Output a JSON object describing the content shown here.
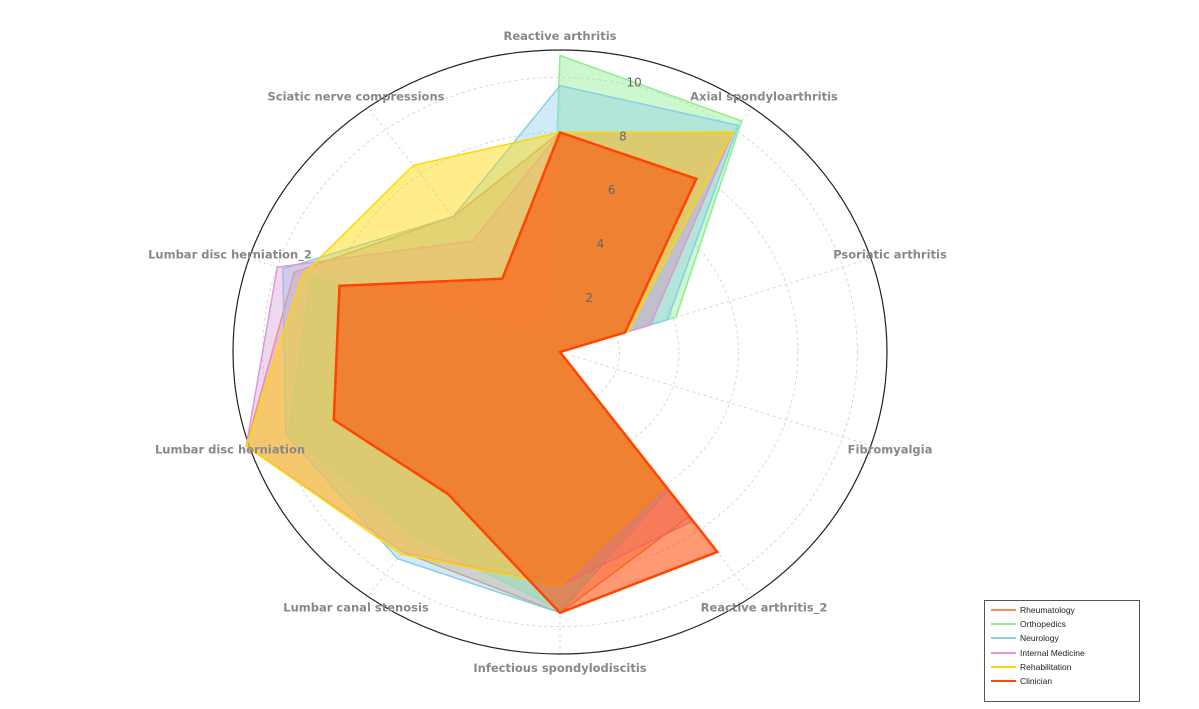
{
  "chart_data": {
    "type": "radar",
    "title": "",
    "axes": [
      "Reactive arthritis",
      "Axial spondyloarthritis",
      "Psoriatic arthritis",
      "Fibromyalgia",
      "Reactive arthritis_2",
      "Infectious spondylodiscitis",
      "Lumbar canal stenosis",
      "Lumbar disc herniation",
      "Lumbar disc herniation_2",
      "Sciatic nerve compressions"
    ],
    "rlim": [
      0,
      11
    ],
    "rticks": [
      "2",
      "4",
      "6",
      "8",
      "10"
    ],
    "grid": true,
    "legend_position": "bottom-right",
    "series": [
      {
        "name": "Rheumatology",
        "color": "#f28e5b",
        "fill_opacity": 0.4,
        "line_width": 1.5,
        "values": [
          8.0,
          9.9,
          3.2,
          0,
          7.4,
          9.5,
          9.0,
          11.1,
          9.4,
          6.1
        ]
      },
      {
        "name": "Orthopedics",
        "color": "#90ee90",
        "fill_opacity": 0.45,
        "line_width": 1.5,
        "values": [
          10.8,
          10.4,
          4.1,
          0,
          6.0,
          9.4,
          8.3,
          9.6,
          8.8,
          0.6
        ]
      },
      {
        "name": "Neurology",
        "color": "#87ceeb",
        "fill_opacity": 0.4,
        "line_width": 1.5,
        "values": [
          9.7,
          10.2,
          3.8,
          0,
          6.2,
          9.5,
          9.3,
          9.7,
          9.8,
          6.1
        ]
      },
      {
        "name": "Internal Medicine",
        "color": "#da9ad9",
        "fill_opacity": 0.4,
        "line_width": 1.5,
        "values": [
          8.0,
          9.9,
          3.2,
          0,
          7.6,
          8.5,
          9.0,
          11.1,
          10.0,
          5.0
        ]
      },
      {
        "name": "Rehabilitation",
        "color": "#ffd700",
        "fill_opacity": 0.45,
        "line_width": 1.5,
        "values": [
          8.0,
          9.9,
          2.4,
          0,
          6.0,
          8.5,
          9.1,
          11.1,
          9.1,
          8.4
        ]
      },
      {
        "name": "Clinician",
        "color": "#ff4500",
        "fill_opacity": 0.55,
        "line_width": 2.5,
        "values": [
          8.0,
          7.8,
          2.3,
          0,
          9.0,
          9.5,
          6.4,
          8.0,
          7.8,
          3.3
        ]
      }
    ]
  }
}
